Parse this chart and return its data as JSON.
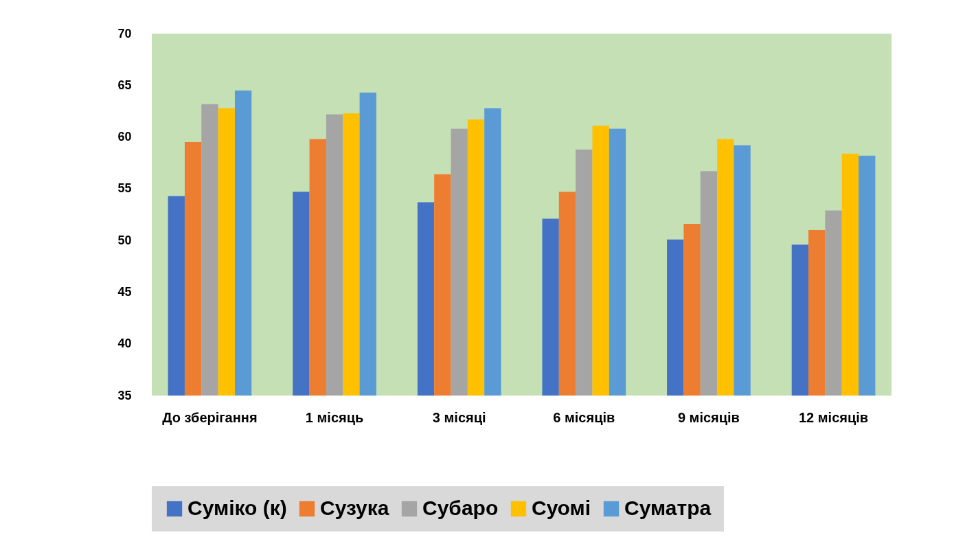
{
  "chart_data": {
    "type": "bar",
    "categories": [
      "До зберігання",
      "1 місяць",
      "3 місяці",
      "6 місяців",
      "9 місяців",
      "12 місяців"
    ],
    "series": [
      {
        "name": "Суміко (к)",
        "color": "#4472c4",
        "values": [
          54.3,
          54.7,
          53.7,
          52.1,
          50.1,
          49.6
        ]
      },
      {
        "name": "Сузука",
        "color": "#ed7d31",
        "values": [
          59.5,
          59.8,
          56.4,
          54.7,
          51.6,
          51.0
        ]
      },
      {
        "name": "Субаро",
        "color": "#a5a5a5",
        "values": [
          63.2,
          62.2,
          60.8,
          58.8,
          56.7,
          52.9
        ]
      },
      {
        "name": "Суомі",
        "color": "#ffc000",
        "values": [
          62.8,
          62.3,
          61.7,
          61.1,
          59.8,
          58.4
        ]
      },
      {
        "name": "Суматра",
        "color": "#5b9bd5",
        "values": [
          64.5,
          64.3,
          62.8,
          60.8,
          59.2,
          58.2
        ]
      }
    ],
    "ylim": [
      35,
      70
    ],
    "yticks": [
      35,
      40,
      45,
      50,
      55,
      60,
      65,
      70
    ],
    "grid": false,
    "legend": "bottom"
  }
}
